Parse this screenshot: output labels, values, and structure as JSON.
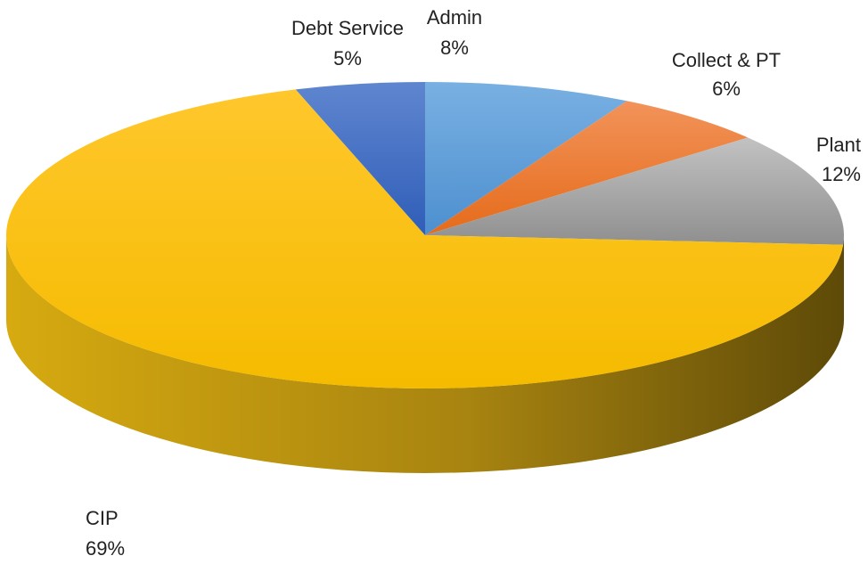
{
  "chart_data": {
    "type": "pie",
    "style": "3d",
    "title": "",
    "slices": [
      {
        "label": "Admin",
        "value": 8,
        "value_label": "8%",
        "color": "#5b9bd5"
      },
      {
        "label": "Collect & PT",
        "value": 6,
        "value_label": "6%",
        "color": "#ed7d31"
      },
      {
        "label": "Plant",
        "value": 12,
        "value_label": "12%",
        "color": "#a5a5a5"
      },
      {
        "label": "CIP",
        "value": 69,
        "value_label": "69%",
        "color": "#ffc000"
      },
      {
        "label": "Debt Service",
        "value": 5,
        "value_label": "5%",
        "color": "#4472c4"
      }
    ]
  }
}
